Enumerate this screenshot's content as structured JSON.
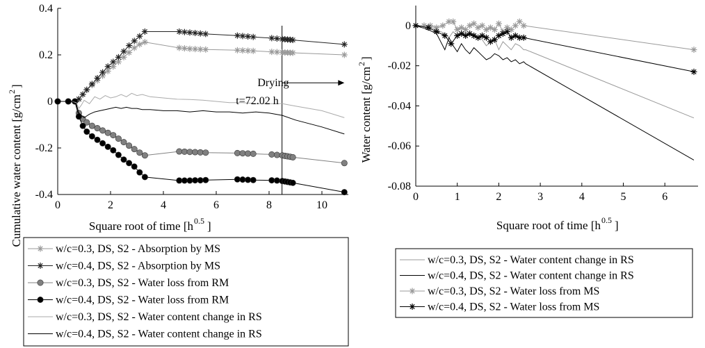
{
  "chart_data": [
    {
      "type": "line",
      "xlabel": "Square root of time [h",
      "xlabel_sup": "0.5",
      "xlabel_end": "]",
      "ylabel": "Cumulative water content [g/cm",
      "ylabel_sup": "2",
      "ylabel_end": "]",
      "xlim": [
        0,
        11
      ],
      "ylim": [
        -0.4,
        0.4
      ],
      "xticks": [
        0,
        2,
        4,
        6,
        8,
        10
      ],
      "yticks": [
        -0.4,
        -0.2,
        0,
        0.2,
        0.4
      ],
      "ytick_labels": [
        "-0.4",
        "-0.2",
        "0",
        "0.2",
        "0.4"
      ],
      "grid": false,
      "annotation": {
        "line1": "Drying",
        "line2": "t=72.02 h",
        "x": 8.49,
        "arrow_to_x": 10.85,
        "arrow_y": 0.08
      },
      "legend_position": "bottom",
      "series": [
        {
          "name": "w/c=0.3, DS, S2 - Absorption by MS",
          "color": "#999999",
          "marker": "asterisk",
          "x": [
            0,
            0.4,
            0.65,
            0.8,
            0.95,
            1.1,
            1.3,
            1.5,
            1.7,
            1.9,
            2.1,
            2.3,
            2.5,
            2.7,
            2.9,
            3.1,
            3.3,
            4.6,
            4.8,
            5.0,
            5.2,
            5.4,
            5.6,
            6.8,
            7.0,
            7.2,
            7.4,
            8.1,
            8.3,
            8.5,
            8.6,
            8.7,
            8.8,
            8.9,
            10.85
          ],
          "y": [
            0,
            0,
            0,
            0.01,
            0.03,
            0.05,
            0.07,
            0.09,
            0.11,
            0.13,
            0.15,
            0.17,
            0.19,
            0.21,
            0.23,
            0.245,
            0.255,
            0.23,
            0.228,
            0.226,
            0.225,
            0.224,
            0.223,
            0.22,
            0.219,
            0.218,
            0.217,
            0.213,
            0.212,
            0.211,
            0.21,
            0.21,
            0.209,
            0.209,
            0.2
          ]
        },
        {
          "name": "w/c=0.4, DS, S2 - Absorption by MS",
          "color": "#222222",
          "marker": "asterisk",
          "x": [
            0,
            0.4,
            0.65,
            0.8,
            0.95,
            1.1,
            1.3,
            1.5,
            1.7,
            1.9,
            2.1,
            2.3,
            2.5,
            2.7,
            2.9,
            3.1,
            3.3,
            4.6,
            4.8,
            5.0,
            5.2,
            5.4,
            5.6,
            6.8,
            7.0,
            7.2,
            7.4,
            8.1,
            8.3,
            8.5,
            8.6,
            8.7,
            8.8,
            8.9,
            10.85
          ],
          "y": [
            0,
            0,
            0,
            0.01,
            0.03,
            0.05,
            0.075,
            0.1,
            0.125,
            0.15,
            0.17,
            0.19,
            0.215,
            0.24,
            0.26,
            0.28,
            0.3,
            0.3,
            0.298,
            0.296,
            0.294,
            0.292,
            0.29,
            0.283,
            0.281,
            0.279,
            0.277,
            0.272,
            0.27,
            0.268,
            0.267,
            0.266,
            0.265,
            0.264,
            0.245
          ]
        },
        {
          "name": "w/c=0.3, DS, S2 - Water loss from RM",
          "color": "#808080",
          "marker": "circle",
          "x": [
            0,
            0.4,
            0.65,
            0.8,
            0.95,
            1.1,
            1.3,
            1.5,
            1.7,
            1.9,
            2.1,
            2.3,
            2.5,
            2.7,
            2.9,
            3.1,
            3.3,
            4.6,
            4.8,
            5.0,
            5.2,
            5.4,
            5.6,
            6.8,
            7.0,
            7.2,
            7.4,
            8.1,
            8.3,
            8.5,
            8.6,
            8.7,
            8.8,
            8.9,
            10.85
          ],
          "y": [
            0,
            0,
            0,
            -0.05,
            -0.075,
            -0.09,
            -0.105,
            -0.115,
            -0.125,
            -0.135,
            -0.145,
            -0.16,
            -0.175,
            -0.19,
            -0.205,
            -0.22,
            -0.232,
            -0.215,
            -0.216,
            -0.217,
            -0.218,
            -0.219,
            -0.22,
            -0.222,
            -0.223,
            -0.224,
            -0.225,
            -0.228,
            -0.23,
            -0.232,
            -0.234,
            -0.236,
            -0.238,
            -0.24,
            -0.265
          ]
        },
        {
          "name": "w/c=0.4, DS, S2 - Water loss from RM",
          "color": "#000000",
          "marker": "circle",
          "x": [
            0,
            0.4,
            0.65,
            0.8,
            0.95,
            1.1,
            1.3,
            1.5,
            1.7,
            1.9,
            2.1,
            2.3,
            2.5,
            2.7,
            2.9,
            3.1,
            3.3,
            4.6,
            4.8,
            5.0,
            5.2,
            5.4,
            5.6,
            6.8,
            7.0,
            7.2,
            7.4,
            8.1,
            8.3,
            8.5,
            8.6,
            8.7,
            8.8,
            8.9,
            10.85
          ],
          "y": [
            0,
            0,
            0,
            -0.065,
            -0.105,
            -0.13,
            -0.15,
            -0.165,
            -0.18,
            -0.195,
            -0.21,
            -0.23,
            -0.25,
            -0.265,
            -0.28,
            -0.305,
            -0.325,
            -0.34,
            -0.34,
            -0.34,
            -0.339,
            -0.339,
            -0.338,
            -0.335,
            -0.336,
            -0.337,
            -0.338,
            -0.339,
            -0.34,
            -0.342,
            -0.344,
            -0.346,
            -0.348,
            -0.35,
            -0.39
          ]
        },
        {
          "name": "w/c=0.3, DS, S2 - Water content change in RS",
          "color": "#aaaaaa",
          "marker": "none",
          "x": [
            0,
            0.5,
            0.7,
            0.8,
            0.9,
            1.0,
            1.2,
            1.4,
            1.6,
            1.8,
            2.0,
            2.2,
            2.4,
            2.6,
            2.8,
            3.0,
            3.2,
            3.5,
            4.0,
            4.5,
            5.0,
            5.5,
            6.0,
            6.5,
            7.0,
            7.5,
            8.0,
            8.5,
            9.0,
            10.0,
            10.85
          ],
          "y": [
            0,
            0,
            -0.005,
            -0.03,
            -0.015,
            0.005,
            -0.01,
            0.02,
            0.01,
            0.025,
            0.015,
            0.02,
            0.03,
            0.02,
            0.035,
            0.025,
            0.03,
            0.02,
            0.015,
            0.01,
            0.008,
            0.005,
            0.0,
            -0.005,
            -0.005,
            -0.01,
            -0.01,
            -0.01,
            -0.02,
            -0.04,
            -0.07
          ]
        },
        {
          "name": "w/c=0.4, DS, S2 - Water content change in RS",
          "color": "#000000",
          "marker": "none",
          "x": [
            0,
            0.5,
            0.7,
            0.8,
            0.9,
            1.0,
            1.2,
            1.4,
            1.6,
            1.8,
            2.0,
            2.2,
            2.4,
            2.6,
            2.8,
            3.0,
            3.2,
            3.5,
            4.0,
            4.5,
            5.0,
            5.5,
            6.0,
            6.5,
            7.0,
            7.5,
            8.0,
            8.5,
            9.0,
            10.0,
            10.85
          ],
          "y": [
            0,
            0,
            -0.01,
            -0.05,
            -0.06,
            -0.07,
            -0.055,
            -0.045,
            -0.04,
            -0.035,
            -0.03,
            -0.025,
            -0.03,
            -0.025,
            -0.03,
            -0.03,
            -0.035,
            -0.035,
            -0.04,
            -0.04,
            -0.045,
            -0.04,
            -0.045,
            -0.045,
            -0.05,
            -0.045,
            -0.05,
            -0.06,
            -0.08,
            -0.11,
            -0.14
          ]
        }
      ]
    },
    {
      "type": "line",
      "xlabel": "Square root of time [h",
      "xlabel_sup": "0.5",
      "xlabel_end": "]",
      "ylabel": "Water content [g/cm",
      "ylabel_sup": "2",
      "ylabel_end": "]",
      "xlim": [
        0,
        6.8
      ],
      "ylim": [
        -0.08,
        0.01
      ],
      "xticks": [
        0,
        1,
        2,
        3,
        4,
        5,
        6
      ],
      "yticks": [
        -0.08,
        -0.06,
        -0.04,
        -0.02,
        0
      ],
      "ytick_labels": [
        "-0.08",
        "-0.06",
        "-0.04",
        "-0.02",
        "0"
      ],
      "grid": false,
      "legend_position": "bottom",
      "series": [
        {
          "name": "w/c=0.3, DS, S2 - Water content change in RS",
          "color": "#999999",
          "marker": "none",
          "x": [
            0,
            0.3,
            0.5,
            0.7,
            0.8,
            0.9,
            1.0,
            1.1,
            1.2,
            1.3,
            1.4,
            1.5,
            1.6,
            1.7,
            1.8,
            1.9,
            2.0,
            2.1,
            2.2,
            2.3,
            2.4,
            2.5,
            2.6,
            2.65,
            6.7
          ],
          "y": [
            0,
            -0.001,
            -0.002,
            -0.004,
            -0.006,
            -0.003,
            -0.005,
            -0.004,
            -0.003,
            -0.005,
            -0.004,
            -0.006,
            -0.007,
            -0.01,
            -0.008,
            -0.007,
            -0.012,
            -0.008,
            -0.01,
            -0.012,
            -0.009,
            -0.01,
            -0.012,
            -0.012,
            -0.046
          ]
        },
        {
          "name": "w/c=0.4, DS, S2 - Water content change in RS",
          "color": "#000000",
          "marker": "none",
          "x": [
            0,
            0.3,
            0.5,
            0.7,
            0.8,
            0.9,
            1.0,
            1.1,
            1.2,
            1.3,
            1.4,
            1.5,
            1.6,
            1.7,
            1.8,
            1.9,
            2.0,
            2.1,
            2.2,
            2.3,
            2.4,
            2.5,
            2.6,
            2.65,
            6.7
          ],
          "y": [
            0,
            -0.002,
            -0.004,
            -0.012,
            -0.006,
            -0.01,
            -0.013,
            -0.009,
            -0.012,
            -0.014,
            -0.011,
            -0.013,
            -0.015,
            -0.017,
            -0.016,
            -0.014,
            -0.015,
            -0.017,
            -0.016,
            -0.018,
            -0.017,
            -0.019,
            -0.018,
            -0.019,
            -0.067
          ]
        },
        {
          "name": "w/c=0.3, DS, S2 - Water loss from MS",
          "color": "#999999",
          "marker": "asterisk",
          "x": [
            0,
            0.2,
            0.35,
            0.5,
            0.65,
            0.8,
            0.9,
            1.0,
            1.1,
            1.2,
            1.3,
            1.4,
            1.5,
            1.6,
            1.7,
            1.8,
            1.9,
            2.0,
            2.1,
            2.2,
            2.3,
            2.4,
            2.5,
            2.6,
            6.7
          ],
          "y": [
            0,
            0,
            0,
            -0.001,
            0.0,
            0.002,
            0.002,
            -0.002,
            -0.001,
            -0.002,
            0.0,
            0.001,
            -0.001,
            0.0,
            -0.002,
            -0.001,
            -0.002,
            0.001,
            -0.003,
            -0.001,
            -0.002,
            0.0,
            0.002,
            0.0,
            -0.012
          ]
        },
        {
          "name": "w/c=0.4, DS, S2 - Water loss from MS",
          "color": "#000000",
          "marker": "asterisk",
          "x": [
            0,
            0.3,
            0.5,
            0.7,
            0.85,
            1.0,
            1.1,
            1.2,
            1.3,
            1.4,
            1.5,
            1.6,
            1.7,
            1.8,
            1.9,
            2.0,
            2.1,
            2.2,
            2.3,
            2.4,
            2.5,
            2.6,
            6.7
          ],
          "y": [
            0,
            -0.001,
            -0.003,
            -0.005,
            -0.009,
            -0.005,
            -0.004,
            -0.005,
            -0.004,
            -0.005,
            -0.006,
            -0.005,
            -0.006,
            -0.008,
            -0.007,
            -0.005,
            -0.004,
            -0.003,
            -0.006,
            -0.005,
            -0.006,
            -0.006,
            -0.023
          ]
        }
      ]
    }
  ]
}
